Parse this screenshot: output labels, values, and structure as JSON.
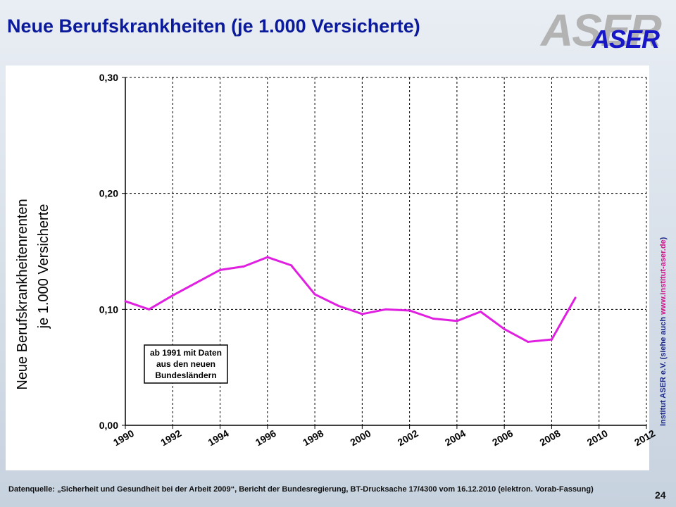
{
  "header": {
    "title": "Neue Berufskrankheiten (je 1.000 Versicherte)",
    "logo_text": "ASER"
  },
  "chart_data": {
    "type": "line",
    "title": "Neue Berufskrankheiten (je 1.000 Versicherte)",
    "ylabel_line1": "Neue Berufskrankheitenrenten",
    "ylabel_line2": "je 1.000 Versicherte",
    "xlabel": "",
    "xlim": [
      1990,
      2012
    ],
    "ylim": [
      0,
      0.3
    ],
    "x_ticks": [
      "1990",
      "1992",
      "1994",
      "1996",
      "1998",
      "2000",
      "2002",
      "2004",
      "2006",
      "2008",
      "2010",
      "2012"
    ],
    "y_ticks": [
      "0,00",
      "0,10",
      "0,20",
      "0,30"
    ],
    "grid": true,
    "line_color": "#e020e0",
    "x": [
      1990,
      1991,
      1992,
      1993,
      1994,
      1995,
      1996,
      1997,
      1998,
      1999,
      2000,
      2001,
      2002,
      2003,
      2004,
      2005,
      2006,
      2007,
      2008,
      2009
    ],
    "values": [
      0.107,
      0.1,
      0.112,
      0.123,
      0.134,
      0.137,
      0.145,
      0.138,
      0.113,
      0.103,
      0.096,
      0.1,
      0.099,
      0.092,
      0.09,
      0.098,
      0.083,
      0.072,
      0.074,
      0.11
    ],
    "annotation": [
      "ab 1991 mit Daten",
      "aus den neuen",
      "Bundesländern"
    ]
  },
  "footer": {
    "source": "Datenquelle: „Sicherheit und Gesundheit bei der Arbeit 2009“, Bericht der Bundesregierung, BT-Drucksache 17/4300 vom 16.12.2010 (elektron. Vorab-Fassung)",
    "side_note": "Institut ASER e.V. (siehe auch",
    "side_link": "www.institut-aser.de",
    "side_close": ")",
    "page_number": "24"
  }
}
